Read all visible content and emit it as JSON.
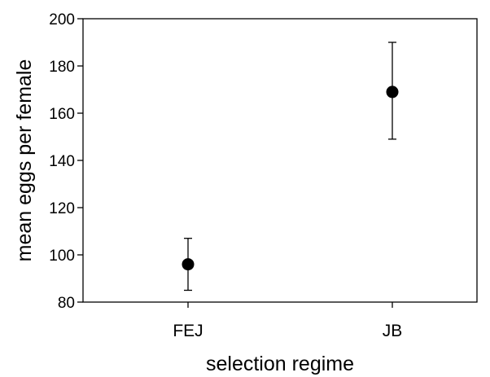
{
  "chart_data": {
    "type": "scatter",
    "title": "",
    "xlabel": "selection regime",
    "ylabel": "mean eggs per female",
    "categories": [
      "FEJ",
      "JB"
    ],
    "series": [
      {
        "values": [
          96,
          169
        ],
        "error_low": [
          85,
          149
        ],
        "error_high": [
          107,
          190
        ]
      }
    ],
    "ylim": [
      80,
      200
    ],
    "yticks": [
      80,
      100,
      120,
      140,
      160,
      180,
      200
    ],
    "grid": false,
    "legend": "none",
    "marker_color": "#000000"
  }
}
